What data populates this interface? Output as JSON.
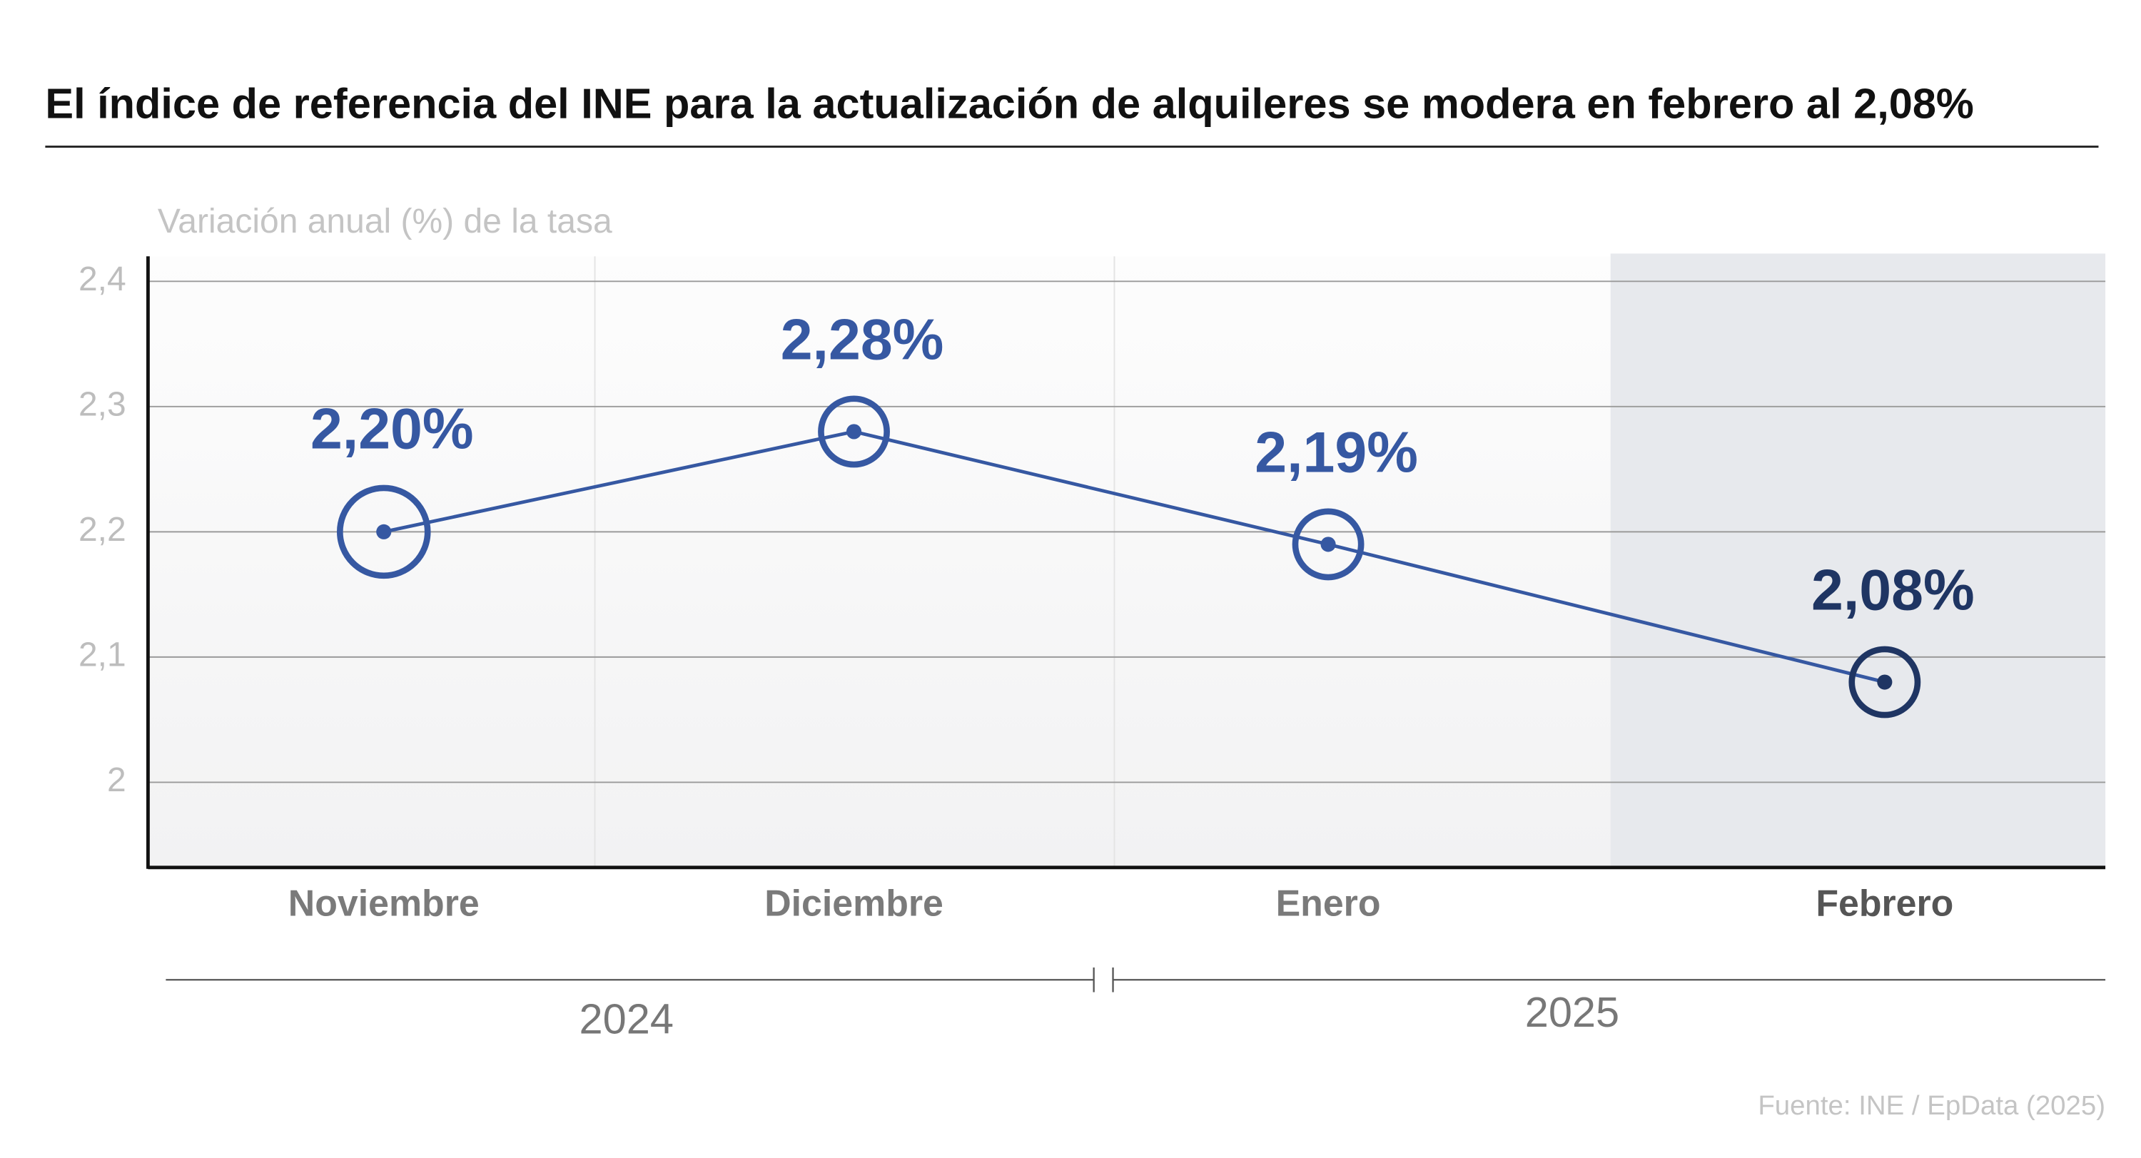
{
  "chart_data": {
    "type": "line",
    "title": "El índice de referencia del INE para la actualización de alquileres se modera en febrero al 2,08%",
    "subtitle": "Variación anual (%) de la tasa",
    "categories": [
      "Noviembre",
      "Diciembre",
      "Enero",
      "Febrero"
    ],
    "series": [
      {
        "name": "Variación anual",
        "color": "#3658a2",
        "values": [
          2.2,
          2.28,
          2.19,
          2.08
        ],
        "value_labels": [
          "2,20%",
          "2,28%",
          "2,19%",
          "2,08%"
        ]
      }
    ],
    "highlight_color": "#1f3563",
    "periods": [
      "2024",
      "2025"
    ],
    "ylim": [
      1.932,
      2.42
    ],
    "yticks": [
      2,
      {
        "value": 2.1,
        "label": "2,1"
      },
      {
        "value": 2.2,
        "label": "2,2"
      },
      {
        "value": 2.3,
        "label": "2,3"
      },
      {
        "value": 2.4,
        "label": "2,4"
      }
    ],
    "grid": true,
    "source": "Fuente: INE / EpData (2025)"
  }
}
